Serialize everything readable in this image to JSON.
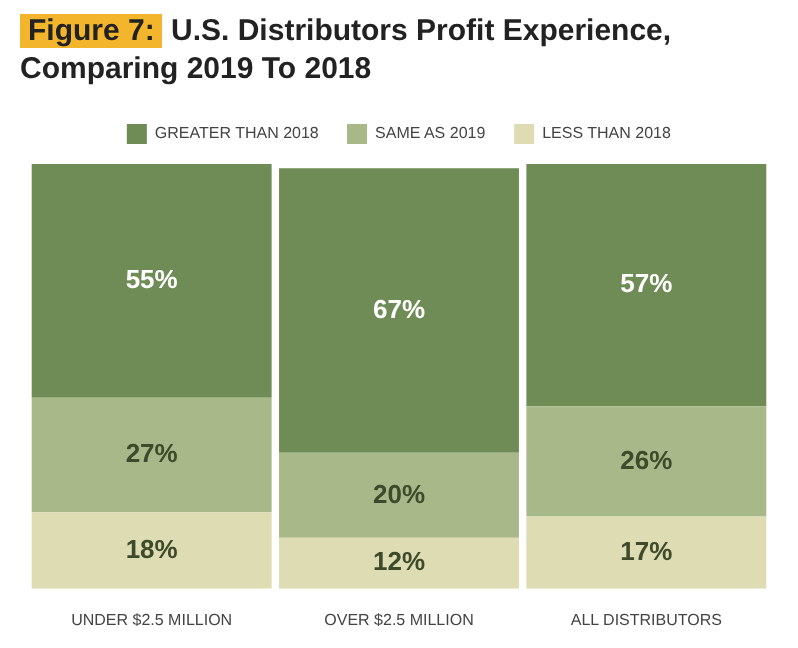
{
  "chart_data": {
    "type": "bar",
    "title": "Figure 7: U.S. Distributors Profit Experience, Comparing 2019 To 2018",
    "categories": [
      "UNDER $2.5 MILLION",
      "OVER $2.5 MILLION",
      "ALL DISTRIBUTORS"
    ],
    "stacked": true,
    "legend": "top",
    "series": [
      {
        "name": "LESS THAN 2018",
        "color": "#dedcb2",
        "values": [
          18,
          12,
          17
        ],
        "value_labels": [
          "18%",
          "12%",
          "17%"
        ]
      },
      {
        "name": "SAME AS 2019",
        "color": "#a8b889",
        "values": [
          27,
          20,
          26
        ],
        "value_labels": [
          "27%",
          "20%",
          "26%"
        ]
      },
      {
        "name": "GREATER THAN 2018",
        "color": "#6f8c56",
        "values": [
          55,
          67,
          57
        ],
        "value_labels": [
          "55%",
          "67%",
          "57%"
        ]
      }
    ]
  }
}
